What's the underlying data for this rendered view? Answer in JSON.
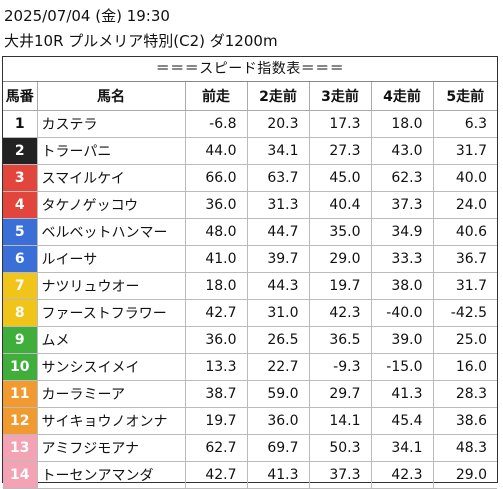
{
  "header": {
    "date_line": "2025/07/04 (金) 19:30",
    "race_line": "大井10R プルメリア特別(C2) ダ1200m"
  },
  "banner": "＝＝＝スピード指数表＝＝＝",
  "columns": [
    "馬番",
    "馬名",
    "前走",
    "2走前",
    "3走前",
    "4走前",
    "5走前"
  ],
  "rows": [
    {
      "num": "1",
      "name": "カステラ",
      "v": [
        "-6.8",
        "20.3",
        "17.3",
        "18.0",
        "6.3"
      ],
      "bg": "#ffffff",
      "fg": "#111111"
    },
    {
      "num": "2",
      "name": "トラーパニ",
      "v": [
        "44.0",
        "34.1",
        "27.3",
        "43.0",
        "31.7"
      ],
      "bg": "#222222",
      "fg": "#ffffff"
    },
    {
      "num": "3",
      "name": "スマイルケイ",
      "v": [
        "66.0",
        "63.7",
        "45.0",
        "62.3",
        "40.0"
      ],
      "bg": "#e2453b",
      "fg": "#ffffff"
    },
    {
      "num": "4",
      "name": "タケノゲッコウ",
      "v": [
        "36.0",
        "31.3",
        "40.4",
        "37.3",
        "24.0"
      ],
      "bg": "#e2453b",
      "fg": "#ffffff"
    },
    {
      "num": "5",
      "name": "ベルベットハンマー",
      "v": [
        "48.0",
        "44.7",
        "35.0",
        "34.9",
        "40.6"
      ],
      "bg": "#3a6fd8",
      "fg": "#ffffff"
    },
    {
      "num": "6",
      "name": "ルイーサ",
      "v": [
        "41.0",
        "39.7",
        "29.0",
        "33.3",
        "36.7"
      ],
      "bg": "#3a6fd8",
      "fg": "#ffffff"
    },
    {
      "num": "7",
      "name": "ナツリュウオー",
      "v": [
        "18.0",
        "44.3",
        "19.7",
        "38.0",
        "31.7"
      ],
      "bg": "#f0c419",
      "fg": "#ffffff"
    },
    {
      "num": "8",
      "name": "ファーストフラワー",
      "v": [
        "42.7",
        "31.0",
        "42.3",
        "-40.0",
        "-42.5"
      ],
      "bg": "#f0c419",
      "fg": "#ffffff"
    },
    {
      "num": "9",
      "name": "ムメ",
      "v": [
        "36.0",
        "26.5",
        "36.5",
        "39.0",
        "25.0"
      ],
      "bg": "#3fae3a",
      "fg": "#ffffff"
    },
    {
      "num": "10",
      "name": "サンシスイメイ",
      "v": [
        "13.3",
        "22.7",
        "-9.3",
        "-15.0",
        "16.0"
      ],
      "bg": "#3fae3a",
      "fg": "#ffffff"
    },
    {
      "num": "11",
      "name": "カーラミーア",
      "v": [
        "38.7",
        "59.0",
        "29.7",
        "41.3",
        "28.3"
      ],
      "bg": "#f19a2f",
      "fg": "#ffffff"
    },
    {
      "num": "12",
      "name": "サイキョウノオンナ",
      "v": [
        "19.7",
        "36.0",
        "14.1",
        "45.4",
        "38.6"
      ],
      "bg": "#f19a2f",
      "fg": "#ffffff"
    },
    {
      "num": "13",
      "name": "アミフジモアナ",
      "v": [
        "62.7",
        "69.7",
        "50.3",
        "34.1",
        "48.3"
      ],
      "bg": "#f4a3b5",
      "fg": "#ffffff"
    },
    {
      "num": "14",
      "name": "トーセンアマンダ",
      "v": [
        "42.7",
        "41.3",
        "37.3",
        "42.3",
        "29.0"
      ],
      "bg": "#f4a3b5",
      "fg": "#ffffff"
    }
  ]
}
